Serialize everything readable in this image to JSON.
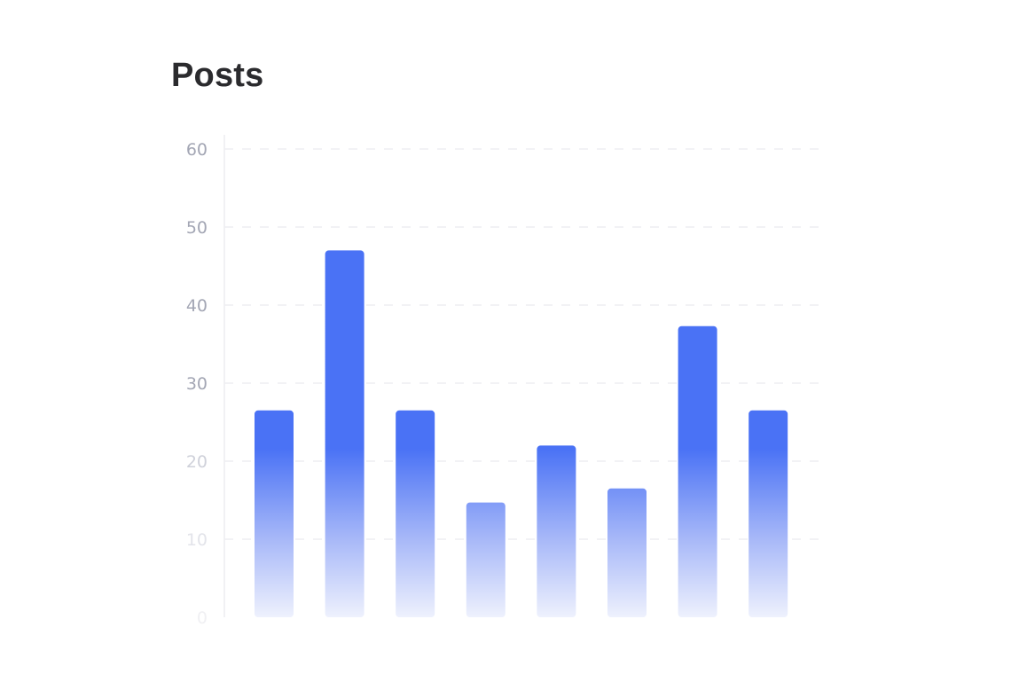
{
  "chart_data": {
    "type": "bar",
    "title": "Posts",
    "xlabel": "",
    "ylabel": "",
    "categories": [
      "",
      "",
      "",
      "",
      "",
      "",
      "",
      ""
    ],
    "values": [
      26.5,
      47,
      26.5,
      14.7,
      22,
      16.5,
      37.3,
      26.5
    ],
    "ylim": [
      0,
      60
    ],
    "yticks": [
      "0",
      "10",
      "20",
      "30",
      "40",
      "50",
      "60"
    ],
    "grid": true,
    "legend": "none",
    "colors": {
      "bar_top": "#4a72f5",
      "bar_bottom": "#eef1fd",
      "grid": "#eeeef2",
      "tick_label": "#a3a6b4",
      "axis": "#f1f1f4"
    }
  }
}
